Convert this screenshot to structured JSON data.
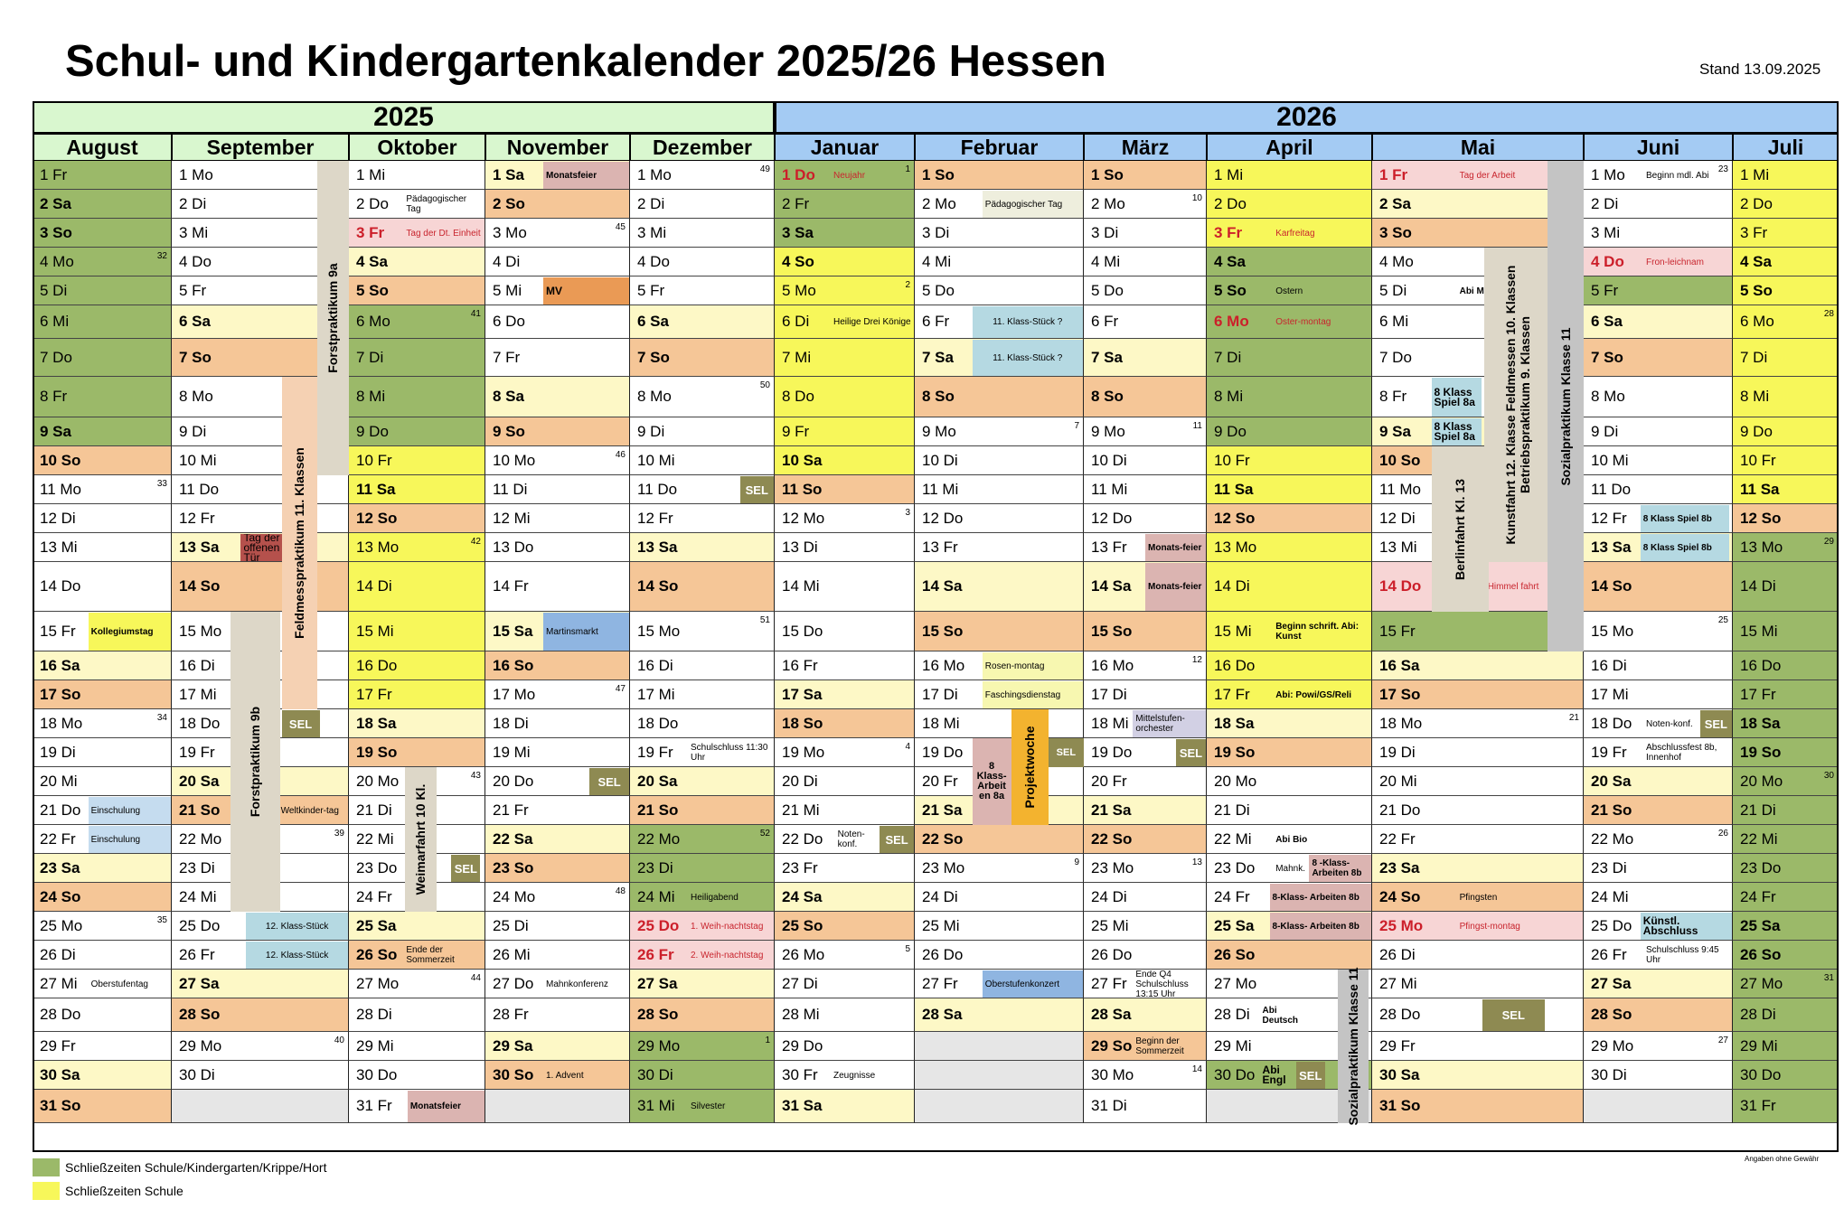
{
  "title": "Schul- und Kindergartenkalender 2025/26 Hessen",
  "stand": "Stand 13.09.2025",
  "years": [
    {
      "label": "2025",
      "color": "#d9f7cf"
    },
    {
      "label": "2026",
      "color": "#a4cbf3"
    }
  ],
  "months": [
    {
      "name": "August",
      "first_wd": 4,
      "days": 31,
      "holidays": [],
      "kw": {
        "4": "32",
        "11": "33",
        "18": "34",
        "25": "35"
      },
      "shade": {
        "1": "#9bb969",
        "2": "#9bb969",
        "3": "#9bb969",
        "4": "#9bb969",
        "5": "#9bb969",
        "6": "#9bb969",
        "7": "#9bb969",
        "8": "#9bb969",
        "9": "#9bb969"
      }
    },
    {
      "name": "September",
      "first_wd": 0,
      "days": 30,
      "holidays": [],
      "kw": {
        "22": "39",
        "29": "40"
      },
      "shade": {}
    },
    {
      "name": "Oktober",
      "first_wd": 2,
      "days": 31,
      "holidays": [
        3
      ],
      "kw": {
        "6": "41",
        "13": "42",
        "20": "43",
        "27": "44"
      },
      "shade": {
        "6": "#9bb969",
        "7": "#9bb969",
        "8": "#9bb969",
        "9": "#9bb969",
        "10": "#f7f75a",
        "11": "#f7f75a",
        "12": "#f5c697",
        "13": "#f7f75a",
        "14": "#f7f75a",
        "15": "#f7f75a",
        "16": "#f7f75a",
        "17": "#f7f75a"
      }
    },
    {
      "name": "November",
      "first_wd": 5,
      "days": 30,
      "holidays": [],
      "kw": {
        "3": "45",
        "10": "46",
        "17": "47",
        "24": "48"
      },
      "shade": {}
    },
    {
      "name": "Dezember",
      "first_wd": 0,
      "days": 31,
      "holidays": [
        25,
        26
      ],
      "kw": {
        "1": "49",
        "8": "50",
        "15": "51",
        "22": "52",
        "29": "1"
      },
      "shade": {
        "22": "#9bb969",
        "23": "#9bb969",
        "24": "#9bb969",
        "29": "#9bb969",
        "30": "#9bb969",
        "31": "#9bb969"
      }
    },
    {
      "name": "Januar",
      "first_wd": 3,
      "days": 31,
      "holidays": [
        1
      ],
      "kw": {
        "1": "1",
        "5": "2",
        "12": "3",
        "19": "4",
        "26": "5"
      },
      "shade": {
        "1": "#9bb969",
        "2": "#9bb969",
        "3": "#9bb969",
        "4": "#f7f75a",
        "5": "#f7f75a",
        "6": "#f7f75a",
        "7": "#f7f75a",
        "8": "#f7f75a",
        "9": "#f7f75a",
        "10": "#f7f75a"
      }
    },
    {
      "name": "Februar",
      "first_wd": 6,
      "days": 28,
      "holidays": [],
      "kw": {
        "9": "7",
        "23": "9"
      },
      "shade": {}
    },
    {
      "name": "März",
      "first_wd": 6,
      "days": 31,
      "holidays": [],
      "kw": {
        "2": "10",
        "9": "11",
        "16": "12",
        "23": "13",
        "30": "14"
      },
      "shade": {}
    },
    {
      "name": "April",
      "first_wd": 2,
      "days": 30,
      "holidays": [
        3,
        6
      ],
      "kw": {},
      "shade": {
        "1": "#f7f75a",
        "2": "#f7f75a",
        "3": "#f7f75a",
        "4": "#9bb969",
        "5": "#9bb969",
        "6": "#9bb969",
        "7": "#9bb969",
        "8": "#9bb969",
        "9": "#9bb969",
        "10": "#f7f75a",
        "11": "#f7f75a",
        "12": "#f5c697",
        "13": "#f7f75a",
        "14": "#f7f75a",
        "15": "#f7f75a",
        "16": "#f7f75a",
        "17": "#f7f75a",
        "30": "#9bb969"
      }
    },
    {
      "name": "Mai",
      "first_wd": 4,
      "days": 31,
      "holidays": [
        1,
        14,
        25
      ],
      "kw": {
        "18": "21"
      },
      "shade": {
        "15": "#9bb969"
      }
    },
    {
      "name": "Juni",
      "first_wd": 0,
      "days": 30,
      "holidays": [
        4
      ],
      "kw": {
        "1": "23",
        "15": "25",
        "22": "26",
        "29": "27"
      },
      "shade": {
        "5": "#9bb969"
      }
    },
    {
      "name": "Juli",
      "first_wd": 2,
      "days": 31,
      "holidays": [],
      "kw": {
        "6": "28",
        "13": "29",
        "20": "30",
        "27": "31"
      },
      "shade": {
        "1": "#f7f75a",
        "2": "#f7f75a",
        "3": "#f7f75a",
        "4": "#f7f75a",
        "5": "#f7f75a",
        "6": "#f7f75a",
        "7": "#f7f75a",
        "8": "#f7f75a",
        "9": "#f7f75a",
        "10": "#f7f75a",
        "11": "#f7f75a",
        "12": "#f5c697",
        "13": "#9bb969",
        "14": "#9bb969",
        "15": "#9bb969",
        "16": "#9bb969",
        "17": "#9bb969",
        "18": "#9bb969",
        "19": "#9bb969",
        "20": "#9bb969",
        "21": "#9bb969",
        "22": "#9bb969",
        "23": "#9bb969",
        "24": "#9bb969",
        "25": "#9bb969",
        "26": "#9bb969",
        "27": "#9bb969",
        "28": "#9bb969",
        "29": "#9bb969",
        "30": "#9bb969",
        "31": "#9bb969"
      }
    }
  ],
  "weekday_names": [
    "Mo",
    "Di",
    "Mi",
    "Do",
    "Fr",
    "Sa",
    "So"
  ],
  "events": [
    {
      "m": 0,
      "d": 15,
      "text": "Kollegiumstag",
      "bg": "#f7f75a",
      "bold": true
    },
    {
      "m": 0,
      "d": 21,
      "text": "Einschulung",
      "bg": "#c5dcef"
    },
    {
      "m": 0,
      "d": 22,
      "text": "Einschulung",
      "bg": "#c5dcef"
    },
    {
      "m": 0,
      "d": 27,
      "text": "Oberstufentag",
      "bg": ""
    },
    {
      "m": 1,
      "d": 13,
      "text": "Tag der offenen Tür",
      "bg": "#b5514c",
      "w": 0.34,
      "off": 0.39,
      "big": true
    },
    {
      "m": 1,
      "d": 18,
      "text": "SEL",
      "bg": "#8e8a52",
      "color": "#fff",
      "bold": true,
      "w": 0.22,
      "off": 0.62
    },
    {
      "m": 1,
      "d": 21,
      "text": "Weltkinder-tag",
      "bg": "",
      "w": 0.4,
      "off": 0.6
    },
    {
      "m": 1,
      "d": 25,
      "text": "12. Klass-Stück",
      "bg": "#b5d9e2",
      "w": 0.58,
      "off": 0.42,
      "center": true
    },
    {
      "m": 1,
      "d": 26,
      "text": "12. Klass-Stück",
      "bg": "#b5d9e2",
      "w": 0.58,
      "off": 0.42,
      "center": true
    },
    {
      "m": 2,
      "d": 2,
      "text": "Pädagogischer Tag",
      "bg": ""
    },
    {
      "m": 2,
      "d": 3,
      "text": "Tag der Dt. Einheit",
      "bg": "",
      "red": true
    },
    {
      "m": 2,
      "d": 23,
      "text": "SEL",
      "bg": "#8e8a52",
      "color": "#fff",
      "bold": true,
      "w": 0.22,
      "off": 0.75
    },
    {
      "m": 2,
      "d": 26,
      "text": "Ende der Sommerzeit",
      "bg": ""
    },
    {
      "m": 2,
      "d": 31,
      "text": "Monatsfeier",
      "bg": "#dbb4b1",
      "bold": true,
      "w": 0.57,
      "off": 0.43
    },
    {
      "m": 3,
      "d": 1,
      "text": "Monatsfeier",
      "bg": "#dbb4b1",
      "bold": true,
      "w": 0.6,
      "off": 0.4
    },
    {
      "m": 3,
      "d": 5,
      "text": "MV",
      "bg": "#ea9a55",
      "bold": true,
      "w": 0.6,
      "off": 0.4,
      "big": true
    },
    {
      "m": 3,
      "d": 15,
      "text": "Martinsmarkt",
      "bg": "#8fb5e1"
    },
    {
      "m": 3,
      "d": 20,
      "text": "SEL",
      "bg": "#8e8a52",
      "color": "#fff",
      "bold": true,
      "w": 0.28,
      "off": 0.72
    },
    {
      "m": 3,
      "d": 27,
      "text": "Mahnkonferenz",
      "bg": ""
    },
    {
      "m": 3,
      "d": 30,
      "text": "1. Advent",
      "bg": ""
    },
    {
      "m": 4,
      "d": 11,
      "text": "SEL",
      "bg": "#8e8a52",
      "color": "#fff",
      "bold": true,
      "w": 0.24,
      "off": 0.76
    },
    {
      "m": 4,
      "d": 19,
      "text": "Schulschluss 11:30 Uhr",
      "bg": ""
    },
    {
      "m": 4,
      "d": 24,
      "text": "Heiligabend",
      "bg": ""
    },
    {
      "m": 4,
      "d": 25,
      "text": "1. Weih-nachtstag",
      "bg": "",
      "red": true
    },
    {
      "m": 4,
      "d": 26,
      "text": "2. Weih-nachtstag",
      "bg": "",
      "red": true
    },
    {
      "m": 4,
      "d": 29,
      "text": "",
      "bg": ""
    },
    {
      "m": 4,
      "d": 31,
      "text": "Silvester",
      "bg": ""
    },
    {
      "m": 5,
      "d": 1,
      "text": "Neujahr",
      "bg": "",
      "red": true
    },
    {
      "m": 5,
      "d": 6,
      "text": "Heilige Drei Könige",
      "bg": ""
    },
    {
      "m": 5,
      "d": 22,
      "text": "Noten-konf.",
      "bg": "",
      "w": 0.32,
      "off": 0.43
    },
    {
      "m": 5,
      "d": 22,
      "text": "SEL",
      "bg": "#8e8a52",
      "color": "#fff",
      "bold": true,
      "w": 0.25,
      "off": 0.75
    },
    {
      "m": 5,
      "d": 30,
      "text": "Zeugnisse",
      "bg": ""
    },
    {
      "m": 6,
      "d": 2,
      "text": "Pädagogischer Tag",
      "bg": "#eeeedd"
    },
    {
      "m": 6,
      "d": 6,
      "text": "11. Klass-Stück ?",
      "bg": "#b5d9e2",
      "w": 0.66,
      "off": 0.34,
      "center": true
    },
    {
      "m": 6,
      "d": 7,
      "text": "11. Klass-Stück ?",
      "bg": "#b5d9e2",
      "w": 0.66,
      "off": 0.34,
      "center": true
    },
    {
      "m": 6,
      "d": 16,
      "text": "Rosen-montag",
      "bg": "#f7f7b0"
    },
    {
      "m": 6,
      "d": 17,
      "text": "Faschingsdienstag",
      "bg": "#f7f7b0"
    },
    {
      "m": 6,
      "d": 27,
      "text": "Oberstufenkonzert",
      "bg": "#8fb5e1"
    },
    {
      "m": 7,
      "d": 13,
      "text": "Monats-feier",
      "bg": "#dbb4b1",
      "bold": true,
      "w": 0.5,
      "off": 0.5
    },
    {
      "m": 7,
      "d": 14,
      "text": "Monats-feier",
      "bg": "#dbb4b1",
      "bold": true,
      "w": 0.5,
      "off": 0.5
    },
    {
      "m": 7,
      "d": 18,
      "text": "Mittelstufen-orchester",
      "bg": "#d2d0e4"
    },
    {
      "m": 7,
      "d": 19,
      "text": "SEL",
      "bg": "#8e8a52",
      "color": "#fff",
      "bold": true,
      "w": 0.25,
      "off": 0.75
    },
    {
      "m": 7,
      "d": 27,
      "text": "Ende Q4 Schulschluss 13:15 Uhr",
      "bg": ""
    },
    {
      "m": 7,
      "d": 29,
      "text": "Beginn der Sommerzeit",
      "bg": ""
    },
    {
      "m": 8,
      "d": 3,
      "text": "Karfreitag",
      "bg": "",
      "red": true
    },
    {
      "m": 8,
      "d": 5,
      "text": "Ostern",
      "bg": ""
    },
    {
      "m": 8,
      "d": 6,
      "text": "Oster-montag",
      "bg": "",
      "red": true
    },
    {
      "m": 8,
      "d": 15,
      "text": "Beginn schrift. Abi: Kunst",
      "bg": "",
      "bold": true
    },
    {
      "m": 8,
      "d": 17,
      "text": "Abi: Powi/GS/Reli",
      "bg": "",
      "bold": true
    },
    {
      "m": 8,
      "d": 22,
      "text": "Abi Bio",
      "bg": "",
      "bold": true
    },
    {
      "m": 8,
      "d": 23,
      "text": "Mahnk.",
      "bg": ""
    },
    {
      "m": 8,
      "d": 23,
      "text": "8 -Klass-Arbeiten 8b",
      "bg": "#dbb4b1",
      "bold": true,
      "w": 0.38,
      "off": 0.62
    },
    {
      "m": 8,
      "d": 24,
      "text": "8-Klass- Arbeiten 8b",
      "bg": "#dbb4b1",
      "bold": true,
      "w": 0.62,
      "off": 0.38
    },
    {
      "m": 8,
      "d": 25,
      "text": "8-Klass- Arbeiten 8b",
      "bg": "#dbb4b1",
      "bold": true,
      "w": 0.62,
      "off": 0.38
    },
    {
      "m": 8,
      "d": 28,
      "text": "Abi Deutsch",
      "bg": "",
      "bold": true,
      "w": 0.3,
      "off": 0.32
    },
    {
      "m": 8,
      "d": 30,
      "text": "Abi Engl",
      "bg": "",
      "bold": true,
      "w": 0.22,
      "off": 0.32,
      "big": true
    },
    {
      "m": 8,
      "d": 30,
      "text": "SEL",
      "bg": "#8e8a52",
      "color": "#fff",
      "bold": true,
      "w": 0.18,
      "off": 0.54
    },
    {
      "m": 9,
      "d": 1,
      "text": "Tag der Arbeit",
      "bg": "",
      "red": true
    },
    {
      "m": 9,
      "d": 5,
      "text": "Abi Mathe",
      "bg": "",
      "bold": true
    },
    {
      "m": 9,
      "d": 8,
      "text": "8 Klass Spiel 8a",
      "bg": "#b5d9e2",
      "bold": true,
      "w": 0.24,
      "off": 0.28,
      "big": true
    },
    {
      "m": 9,
      "d": 9,
      "text": "8 Klass Spiel 8a",
      "bg": "#b5d9e2",
      "bold": true,
      "w": 0.24,
      "off": 0.28,
      "big": true
    },
    {
      "m": 9,
      "d": 14,
      "text": "Christi Himmel fahrt",
      "bg": "",
      "red": true
    },
    {
      "m": 9,
      "d": 24,
      "text": "Pfingsten",
      "bg": ""
    },
    {
      "m": 9,
      "d": 25,
      "text": "Pfingst-montag",
      "bg": "",
      "red": true
    },
    {
      "m": 9,
      "d": 28,
      "text": "SEL",
      "bg": "#8e8a52",
      "color": "#fff",
      "bold": true,
      "w": 0.3,
      "off": 0.52
    },
    {
      "m": 10,
      "d": 1,
      "text": "Beginn mdl. Abi",
      "bg": ""
    },
    {
      "m": 10,
      "d": 4,
      "text": "Fron-leichnam",
      "bg": "",
      "red": true
    },
    {
      "m": 10,
      "d": 12,
      "text": "8 Klass Spiel 8b",
      "bg": "#b5d9e2",
      "bold": true,
      "w": 0.6,
      "off": 0.38
    },
    {
      "m": 10,
      "d": 13,
      "text": "8 Klass Spiel 8b",
      "bg": "#b5d9e2",
      "bold": true,
      "w": 0.6,
      "off": 0.38
    },
    {
      "m": 10,
      "d": 18,
      "text": "Noten-konf.",
      "bg": ""
    },
    {
      "m": 10,
      "d": 18,
      "text": "SEL",
      "bg": "#8e8a52",
      "color": "#fff",
      "bold": true,
      "w": 0.22,
      "off": 0.78
    },
    {
      "m": 10,
      "d": 19,
      "text": "Abschlussfest 8b, Innenhof",
      "bg": ""
    },
    {
      "m": 10,
      "d": 25,
      "text": "Künstl. Abschluss",
      "bg": "#b5d9e2",
      "bold": true,
      "w": 0.62,
      "off": 0.38,
      "big": true
    },
    {
      "m": 10,
      "d": 26,
      "text": "Schulschluss 9:45 Uhr",
      "bg": ""
    }
  ],
  "vbars": [
    {
      "m": 1,
      "off": 0.82,
      "w": 0.18,
      "d0": 1,
      "d1": 10,
      "text": "Forstpraktikum 9a",
      "bg": "#ddd7c8"
    },
    {
      "m": 1,
      "off": 0.62,
      "w": 0.2,
      "d0": 8,
      "d1": 17,
      "text": "Feldmesspraktikum 11. Klassen",
      "bg": "#f5d1b3"
    },
    {
      "m": 1,
      "off": 0.33,
      "w": 0.28,
      "d0": 15,
      "d1": 24,
      "text": "Forstpraktikum 9b",
      "bg": "#ddd7c8"
    },
    {
      "m": 2,
      "off": 0.41,
      "w": 0.23,
      "d0": 20,
      "d1": 24,
      "text": "Weimarfahrt 10 Kl.",
      "bg": "#ddd7c8"
    },
    {
      "m": 6,
      "off": 0.34,
      "w": 0.23,
      "d0": 19,
      "d1": 21,
      "text": "8 Klass-Arbeit en 8a",
      "bg": "#dbb4b1",
      "horiz": true
    },
    {
      "m": 6,
      "off": 0.57,
      "w": 0.22,
      "d0": 18,
      "d1": 21,
      "text": "Projektwoche",
      "bg": "#f3b32f"
    },
    {
      "m": 6,
      "off": 0.79,
      "w": 0.21,
      "d0": 19,
      "d1": 19,
      "text": "SEL",
      "bg": "#8e8a52",
      "horiz": true,
      "color": "#fff"
    },
    {
      "m": 8,
      "off": 0.79,
      "w": 0.19,
      "d0": 27,
      "d1": 31,
      "text": "Sozialpraktikum Klasse 11",
      "bg": "#c4c4c4"
    },
    {
      "m": 9,
      "off": 0.28,
      "w": 0.27,
      "d0": 10,
      "d1": 14,
      "text": "Berlinfahrt Kl. 13",
      "bg": "#ddd7c8"
    },
    {
      "m": 9,
      "off": 0.53,
      "w": 0.32,
      "d0": 4,
      "d1": 13,
      "text": "Kunstfahrt 12. Klasse Feldmessen 10. Klassen Betriebspraktikum 9. Klassen",
      "bg": "#ddd7c8"
    },
    {
      "m": 9,
      "off": 0.83,
      "w": 0.17,
      "d0": 1,
      "d1": 15,
      "text": "Sozialpraktikum Klasse 11",
      "bg": "#c4c4c4"
    }
  ],
  "legend": [
    {
      "text": "Schließzeiten Schule/Kindergarten/Krippe/Hort",
      "color": "#9bb969"
    },
    {
      "text": "Schließzeiten Schule",
      "color": "#f7f75a"
    }
  ],
  "note": "Angaben ohne Gewähr"
}
